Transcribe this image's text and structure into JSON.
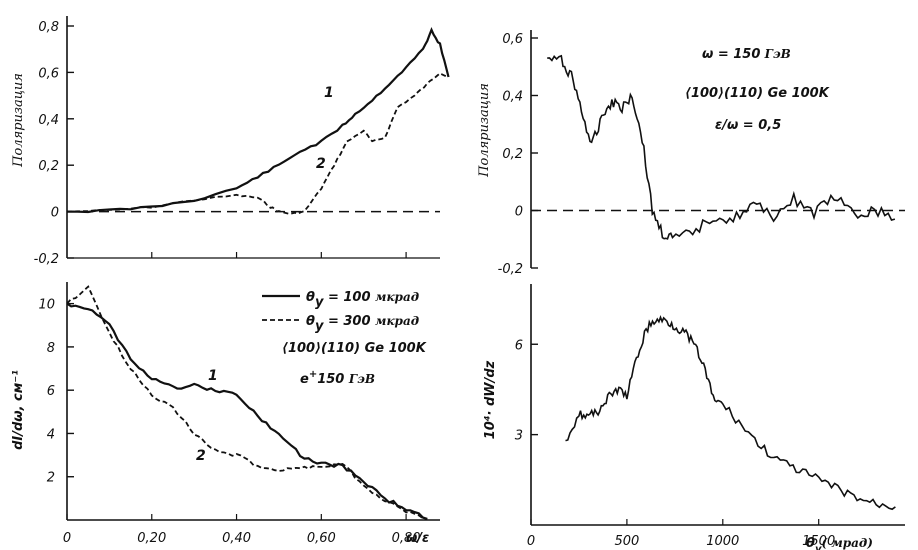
{
  "chart_data": [
    {
      "type": "line",
      "panel": "top-left",
      "ylabel": "Поляризация",
      "xlim": [
        0,
        0.88
      ],
      "ylim": [
        -0.2,
        0.8
      ],
      "yticks": [
        "0,8",
        "0,6",
        "0,4",
        "0,2",
        "0",
        "-0,2"
      ],
      "yticks_values": [
        0.8,
        0.6,
        0.4,
        0.2,
        0,
        -0.2
      ],
      "xticks_values": [
        0.2,
        0.4,
        0.6,
        0.8
      ],
      "grid": false,
      "reference_line": 0,
      "series": [
        {
          "name": "1",
          "style": "solid",
          "x": [
            0,
            0.1,
            0.2,
            0.3,
            0.4,
            0.45,
            0.5,
            0.55,
            0.6,
            0.65,
            0.68,
            0.72,
            0.76,
            0.8,
            0.84,
            0.86,
            0.88,
            0.9
          ],
          "y": [
            0,
            0.005,
            0.02,
            0.05,
            0.1,
            0.15,
            0.2,
            0.26,
            0.3,
            0.37,
            0.42,
            0.48,
            0.55,
            0.62,
            0.7,
            0.78,
            0.72,
            0.58
          ]
        },
        {
          "name": "2",
          "style": "dashed",
          "x": [
            0,
            0.1,
            0.2,
            0.3,
            0.4,
            0.45,
            0.48,
            0.5,
            0.53,
            0.56,
            0.6,
            0.63,
            0.66,
            0.7,
            0.72,
            0.75,
            0.78,
            0.82,
            0.85,
            0.88,
            0.9
          ],
          "y": [
            0,
            0.005,
            0.02,
            0.05,
            0.07,
            0.06,
            0.02,
            0.0,
            -0.01,
            0.0,
            0.1,
            0.2,
            0.3,
            0.35,
            0.3,
            0.32,
            0.45,
            0.5,
            0.55,
            0.6,
            0.58
          ]
        }
      ]
    },
    {
      "type": "line",
      "panel": "bottom-left",
      "ylabel": "dI/dω, см⁻¹",
      "xlabel": "ω/ε",
      "xlim": [
        0,
        0.88
      ],
      "ylim": [
        0,
        11
      ],
      "xticks": [
        "0",
        "0,20",
        "0,40",
        "0,60",
        "0,80"
      ],
      "xticks_values": [
        0,
        0.2,
        0.4,
        0.6,
        0.8
      ],
      "yticks": [
        "10",
        "8",
        "6",
        "4",
        "2"
      ],
      "yticks_values": [
        10,
        8,
        6,
        4,
        2
      ],
      "grid": false,
      "legend": [
        "θy = 100 мкрад",
        "θy = 300 мкрад"
      ],
      "annotations": [
        "⟨100⟩(110) Ge 100K",
        "e⁺150 ГэВ"
      ],
      "series": [
        {
          "name": "1",
          "style": "solid",
          "x": [
            0,
            0.05,
            0.1,
            0.15,
            0.2,
            0.25,
            0.3,
            0.35,
            0.4,
            0.45,
            0.5,
            0.55,
            0.6,
            0.65,
            0.7,
            0.75,
            0.8,
            0.85
          ],
          "y": [
            10,
            9.8,
            9.0,
            7.5,
            6.5,
            6.1,
            6.2,
            6.0,
            5.8,
            4.8,
            4.0,
            3.0,
            2.6,
            2.5,
            1.8,
            1.0,
            0.5,
            0.05
          ]
        },
        {
          "name": "2",
          "style": "dashed",
          "x": [
            0,
            0.05,
            0.1,
            0.15,
            0.2,
            0.25,
            0.3,
            0.35,
            0.4,
            0.45,
            0.5,
            0.55,
            0.6,
            0.65,
            0.7,
            0.75,
            0.8,
            0.85
          ],
          "y": [
            10,
            10.8,
            8.6,
            7.0,
            5.8,
            5.2,
            4.0,
            3.2,
            3.0,
            2.5,
            2.3,
            2.4,
            2.5,
            2.6,
            1.6,
            0.9,
            0.4,
            0.05
          ]
        }
      ]
    },
    {
      "type": "line",
      "panel": "top-right",
      "ylabel": "Поляризация",
      "xlim": [
        100,
        1950
      ],
      "ylim": [
        -0.2,
        0.6
      ],
      "yticks": [
        "0,6",
        "0,4",
        "0,2",
        "0",
        "-0,2"
      ],
      "yticks_values": [
        0.6,
        0.4,
        0.2,
        0,
        -0.2
      ],
      "grid": false,
      "reference_line": 0,
      "annotations": [
        "ω = 150 ГэВ",
        "⟨100⟩(110) Ge 100K",
        "ε/ω = 0,5"
      ],
      "series": [
        {
          "name": "",
          "style": "solid",
          "x": [
            180,
            250,
            300,
            350,
            400,
            450,
            500,
            550,
            600,
            650,
            700,
            750,
            800,
            900,
            1000,
            1100,
            1200,
            1300,
            1400,
            1500,
            1600,
            1700,
            1800,
            1900
          ],
          "y": [
            0.53,
            0.52,
            0.47,
            0.35,
            0.22,
            0.33,
            0.38,
            0.36,
            0.4,
            0.25,
            0.0,
            -0.08,
            -0.1,
            -0.08,
            -0.02,
            -0.03,
            0.02,
            -0.02,
            0.04,
            -0.01,
            0.05,
            -0.02,
            0.0,
            -0.03
          ]
        }
      ]
    },
    {
      "type": "line",
      "panel": "bottom-right",
      "ylabel": "10⁴·dW/dz",
      "xlabel": "θy (мрад)",
      "xlim": [
        0,
        1950
      ],
      "ylim": [
        0,
        8
      ],
      "xticks": [
        "0",
        "500",
        "1000",
        "1500"
      ],
      "xticks_values": [
        0,
        500,
        1000,
        1500
      ],
      "yticks": [
        "6",
        "3"
      ],
      "yticks_values": [
        6,
        3
      ],
      "grid": false,
      "series": [
        {
          "name": "",
          "style": "solid",
          "x": [
            180,
            250,
            300,
            350,
            400,
            450,
            500,
            550,
            600,
            650,
            700,
            750,
            800,
            850,
            900,
            950,
            1000,
            1100,
            1200,
            1300,
            1400,
            1500,
            1600,
            1700,
            1800,
            1900
          ],
          "y": [
            2.8,
            3.7,
            3.6,
            3.8,
            4.2,
            4.5,
            4.3,
            5.5,
            6.5,
            6.8,
            6.8,
            6.6,
            6.4,
            6.0,
            5.3,
            4.2,
            4.0,
            3.3,
            2.6,
            2.1,
            1.8,
            1.5,
            1.2,
            0.9,
            0.7,
            0.6
          ]
        }
      ]
    }
  ],
  "labels": {
    "tl_ylabel": "Поляризация",
    "tl_y": [
      "0,8",
      "0,6",
      "0,4",
      "0,2",
      "0",
      "-0,2"
    ],
    "tl_c1": "1",
    "tl_c2": "2",
    "bl_ylabel": "dI/dω, см⁻¹",
    "bl_y": [
      "10",
      "8",
      "6",
      "4",
      "2"
    ],
    "bl_x": [
      "0",
      "0,20",
      "0,40",
      "0,60",
      "0,80"
    ],
    "bl_xlabel": "ω/ε",
    "bl_leg1_a": "θ",
    "bl_leg1_sub": "y",
    "bl_leg1_b": " = 100 ",
    "bl_leg1_c": "мкрад",
    "bl_leg2_a": "θ",
    "bl_leg2_sub": "y",
    "bl_leg2_b": " = 300 ",
    "bl_leg2_c": "мкрад",
    "bl_ann1": "⟨100⟩(110) Ge 100K",
    "bl_ann2_a": "e",
    "bl_ann2_sup": "+",
    "bl_ann2_b": "150 ",
    "bl_ann2_c": "ГэВ",
    "bl_c1": "1",
    "bl_c2": "2",
    "tr_ylabel": "Поляризация",
    "tr_y": [
      "0,6",
      "0,4",
      "0,2",
      "0",
      "-0,2"
    ],
    "tr_ann1_a": "ω = 150",
    "tr_ann1_b": " ГэВ",
    "tr_ann2": "⟨100⟩(110) Ge 100K",
    "tr_ann3": "ε/ω = 0,5",
    "br_ylabel": "10⁴· dW/dz",
    "br_y": [
      "6",
      "3"
    ],
    "br_x": [
      "0",
      "500",
      "1000",
      "1500"
    ],
    "br_xlabel_a": "θ",
    "br_xlabel_sub": "y",
    "br_xlabel_b": "( мрад)"
  },
  "colors": {
    "ink": "#111111",
    "background": "#ffffff"
  }
}
